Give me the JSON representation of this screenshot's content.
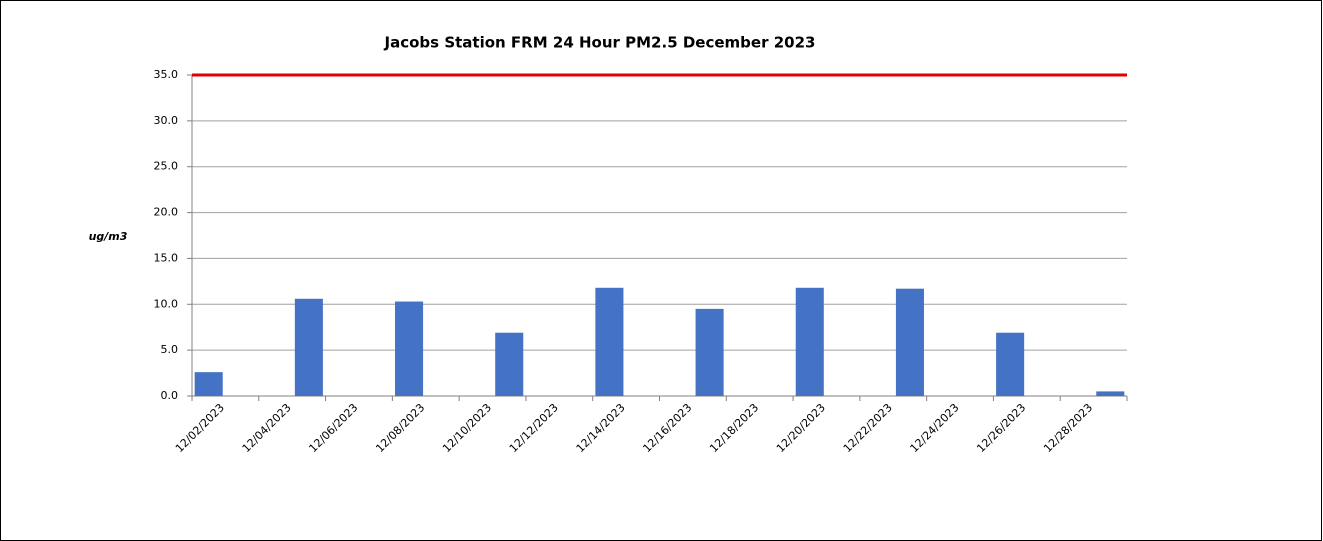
{
  "chart_data": {
    "type": "bar",
    "title": "Jacobs Station FRM 24 Hour PM2.5 December 2023",
    "y_label": "ug/m3",
    "categories": [
      "12/02/2023",
      null,
      "12/04/2023",
      null,
      "12/06/2023",
      null,
      "12/08/2023",
      null,
      "12/10/2023",
      null,
      "12/12/2023",
      null,
      "12/14/2023",
      null,
      "12/16/2023",
      null,
      "12/18/2023",
      null,
      "12/20/2023",
      null,
      "12/22/2023",
      null,
      "12/24/2023",
      null,
      "12/26/2023",
      null,
      "12/28/2023",
      null
    ],
    "values": [
      2.6,
      null,
      null,
      10.6,
      null,
      null,
      10.3,
      null,
      null,
      6.9,
      null,
      null,
      11.8,
      null,
      null,
      9.5,
      null,
      null,
      11.8,
      null,
      null,
      11.7,
      null,
      null,
      6.9,
      null,
      null,
      0.5
    ],
    "color": "#4472c4",
    "reference_line": {
      "value": 35,
      "color": "#e00000"
    },
    "ylim": [
      0,
      35
    ],
    "yticks": [
      {
        "value": 0,
        "label": "0.0"
      },
      {
        "value": 5,
        "label": "5.0"
      },
      {
        "value": 10,
        "label": "10.0"
      },
      {
        "value": 15,
        "label": "15.0"
      },
      {
        "value": 20,
        "label": "20.0"
      },
      {
        "value": 25,
        "label": "25.0"
      },
      {
        "value": 30,
        "label": "30.0"
      },
      {
        "value": 35,
        "label": "35.0"
      }
    ],
    "grid": true
  }
}
